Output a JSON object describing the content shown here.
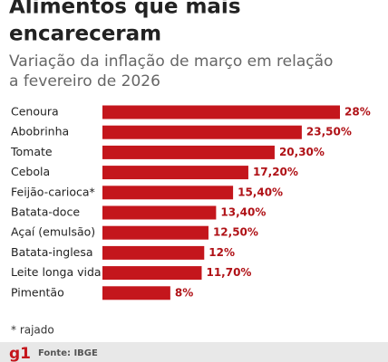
{
  "chart_data": {
    "type": "hbar",
    "title": [
      "Alimentos que mais",
      "encareceram"
    ],
    "subtitle": [
      "Variação da inflação de março em relação",
      "a fevereiro de 2026"
    ],
    "categories": [
      "Cenoura",
      "Abobrinha",
      "Tomate",
      "Cebola",
      "Feijão-carioca*",
      "Batata-doce",
      "Açaí (emulsão)",
      "Batata-inglesa",
      "Leite longa vida",
      "Pimentão"
    ],
    "values": [
      28,
      23.5,
      20.3,
      17.2,
      15.4,
      13.4,
      12.5,
      12,
      11.7,
      8
    ],
    "value_labels": [
      "28%",
      "23,50%",
      "20,30%",
      "17,20%",
      "15,40%",
      "13,40%",
      "12,50%",
      "12%",
      "11,70%",
      "8%"
    ],
    "color": "#c4161c",
    "note": "* rajado",
    "source": "Fonte: IBGE",
    "logo": "g1"
  }
}
